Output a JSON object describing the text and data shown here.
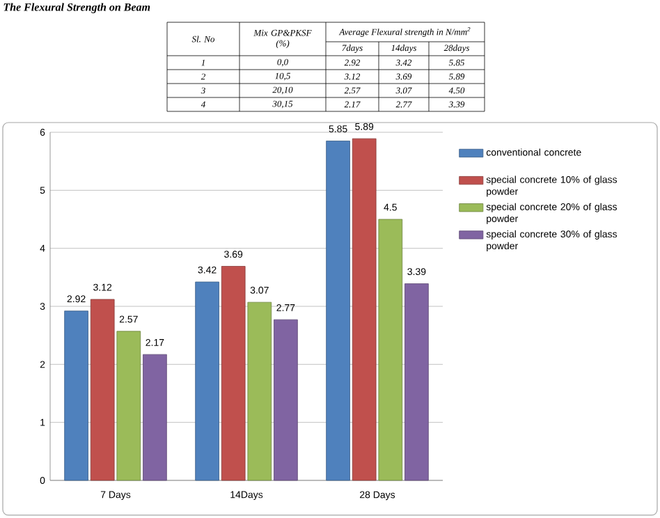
{
  "chart_data": {
    "type": "bar",
    "title": "The Flexural Strength on Beam",
    "annotations": [
      "Sl. No",
      "Mix GP&PKSF (%)",
      "Average Flexural strength in N/mm$^{2}$",
      "7days",
      "14days",
      "28days",
      "1",
      "0,0",
      "2.92",
      "3.42",
      "5.85",
      "2",
      "10,5",
      "3.12",
      "3.69",
      "5.89",
      "3",
      "20,10",
      "2.57",
      "3.07",
      "4.50",
      "4",
      "30,15",
      "2.17",
      "2.77",
      "3.39"
    ],
    "categories": [
      "7 Days",
      "14Days",
      "28 Days"
    ],
    "series": [
      {
        "name": "conventional concrete",
        "color": "#4f81bd",
        "values": [
          2.92,
          3.42,
          5.85
        ]
      },
      {
        "name": "special concrete 10% of glass powder",
        "color": "#c0504d",
        "values": [
          3.12,
          3.69,
          5.89
        ]
      },
      {
        "name": "special concrete 20% of glass powder",
        "color": "#9bbb59",
        "values": [
          2.57,
          3.07,
          4.5
        ]
      },
      {
        "name": "special concrete 30% of glass powder",
        "color": "#8064a2",
        "values": [
          2.17,
          2.77,
          3.39
        ]
      }
    ],
    "ylim": [
      0,
      6
    ],
    "yticks": [
      0,
      1,
      2,
      3,
      4,
      5,
      6
    ],
    "grid": "y",
    "legend": "right",
    "data_labels": true
  }
}
